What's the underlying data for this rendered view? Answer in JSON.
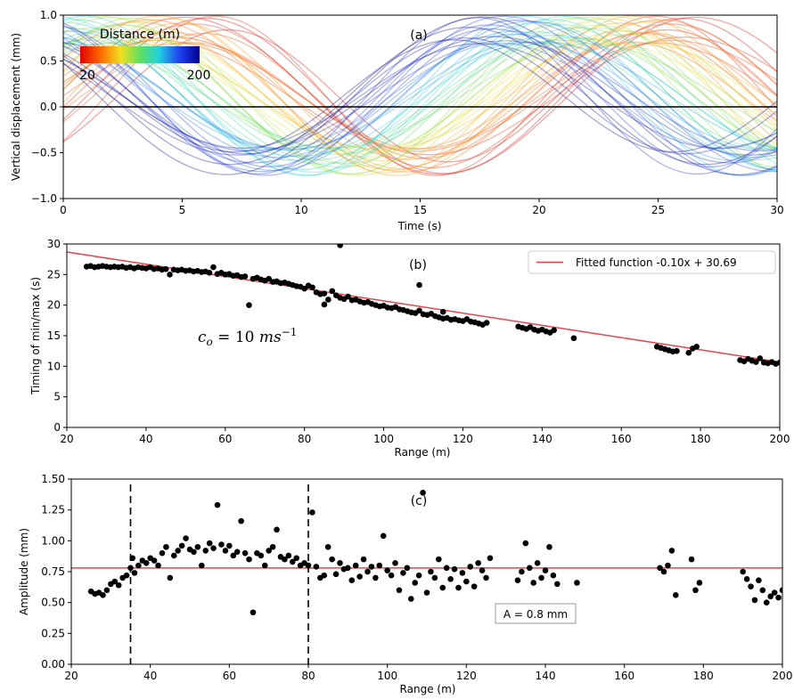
{
  "chart_data": [
    {
      "panel_label": "(a)",
      "type": "line",
      "xlabel": "Time (s)",
      "ylabel": "Vertical displacement (mm)",
      "xlim": [
        0,
        30
      ],
      "ylim": [
        -1.0,
        1.0
      ],
      "xticks": [
        "0",
        "5",
        "10",
        "15",
        "20",
        "25",
        "30"
      ],
      "yticks": [
        "−1.0",
        "−0.5",
        "0.0",
        "0.5",
        "1.0"
      ],
      "zero_line": 0.0,
      "colorbar": {
        "title": "Distance (m)",
        "min_label": "20",
        "max_label": "200",
        "colormap": "jet_r",
        "min": 20,
        "max": 200
      },
      "curve_model": {
        "description_from_picture": "many sine-like curves, one per distance; peak timing decreases with distance",
        "distances": [
          20,
          30,
          40,
          50,
          60,
          70,
          80,
          90,
          100,
          110,
          120,
          130,
          140,
          150,
          160,
          170,
          180,
          190,
          200
        ]
      }
    },
    {
      "panel_label": "(b)",
      "type": "scatter",
      "xlabel": "Range (m)",
      "ylabel": "Timing of min/max (s)",
      "xlim": [
        20,
        200
      ],
      "ylim": [
        0,
        30
      ],
      "xticks": [
        "20",
        "40",
        "60",
        "80",
        "100",
        "120",
        "140",
        "160",
        "180",
        "200"
      ],
      "yticks": [
        "0",
        "5",
        "10",
        "15",
        "20",
        "25",
        "30"
      ],
      "legend": "Fitted function -0.10x + 30.69",
      "legend_position": "top-right",
      "fit": {
        "slope": -0.1,
        "intercept": 30.69,
        "color": "#e8434b"
      },
      "annotation": "c_o = 10 ms^-1",
      "annotation_parts": {
        "c": "c",
        "sub": "o",
        "eq": " = 10 ",
        "unit": "ms",
        "sup": "−1"
      },
      "points": [
        [
          25,
          26.3
        ],
        [
          26,
          26.4
        ],
        [
          27,
          26.2
        ],
        [
          28,
          26.3
        ],
        [
          29,
          26.4
        ],
        [
          30,
          26.3
        ],
        [
          31,
          26.2
        ],
        [
          32,
          26.3
        ],
        [
          33,
          26.2
        ],
        [
          34,
          26.3
        ],
        [
          35,
          26.1
        ],
        [
          36,
          26.2
        ],
        [
          37,
          26.0
        ],
        [
          38,
          26.2
        ],
        [
          39,
          26.1
        ],
        [
          40,
          26.0
        ],
        [
          41,
          26.2
        ],
        [
          42,
          25.9
        ],
        [
          43,
          26.0
        ],
        [
          44,
          25.8
        ],
        [
          45,
          25.9
        ],
        [
          46,
          25.0
        ],
        [
          47,
          25.8
        ],
        [
          48,
          25.7
        ],
        [
          49,
          25.8
        ],
        [
          50,
          25.6
        ],
        [
          51,
          25.7
        ],
        [
          52,
          25.5
        ],
        [
          53,
          25.6
        ],
        [
          54,
          25.4
        ],
        [
          55,
          25.5
        ],
        [
          56,
          25.3
        ],
        [
          57,
          26.2
        ],
        [
          58,
          25.1
        ],
        [
          59,
          25.3
        ],
        [
          60,
          25.0
        ],
        [
          61,
          25.1
        ],
        [
          62,
          24.8
        ],
        [
          63,
          24.9
        ],
        [
          64,
          24.6
        ],
        [
          65,
          24.7
        ],
        [
          66,
          20.0
        ],
        [
          67,
          24.3
        ],
        [
          68,
          24.5
        ],
        [
          69,
          24.2
        ],
        [
          70,
          24.0
        ],
        [
          71,
          24.3
        ],
        [
          72,
          23.8
        ],
        [
          73,
          23.9
        ],
        [
          74,
          23.6
        ],
        [
          75,
          23.7
        ],
        [
          76,
          23.5
        ],
        [
          77,
          23.3
        ],
        [
          78,
          23.1
        ],
        [
          79,
          23.0
        ],
        [
          80,
          22.7
        ],
        [
          81,
          23.2
        ],
        [
          82,
          22.9
        ],
        [
          83,
          22.1
        ],
        [
          84,
          21.8
        ],
        [
          85,
          21.9
        ],
        [
          86,
          20.9
        ],
        [
          87,
          22.3
        ],
        [
          88,
          21.6
        ],
        [
          89,
          21.2
        ],
        [
          90,
          21.0
        ],
        [
          91,
          21.4
        ],
        [
          92,
          20.8
        ],
        [
          93,
          20.9
        ],
        [
          94,
          20.6
        ],
        [
          95,
          20.4
        ],
        [
          96,
          20.5
        ],
        [
          97,
          20.2
        ],
        [
          98,
          20.0
        ],
        [
          99,
          19.8
        ],
        [
          100,
          19.9
        ],
        [
          101,
          19.6
        ],
        [
          102,
          19.5
        ],
        [
          103,
          19.7
        ],
        [
          104,
          19.3
        ],
        [
          105,
          19.2
        ],
        [
          106,
          19.0
        ],
        [
          107,
          18.8
        ],
        [
          108,
          18.7
        ],
        [
          109,
          19.1
        ],
        [
          110,
          18.5
        ],
        [
          111,
          18.4
        ],
        [
          112,
          18.6
        ],
        [
          113,
          18.2
        ],
        [
          114,
          18.0
        ],
        [
          115,
          17.8
        ],
        [
          116,
          17.9
        ],
        [
          117,
          17.6
        ],
        [
          118,
          17.7
        ],
        [
          119,
          17.5
        ],
        [
          120,
          17.4
        ],
        [
          121,
          17.7
        ],
        [
          122,
          17.3
        ],
        [
          123,
          17.2
        ],
        [
          124,
          17.0
        ],
        [
          125,
          16.8
        ],
        [
          126,
          17.1
        ],
        [
          109,
          23.3
        ],
        [
          89,
          29.8
        ],
        [
          85,
          20.1
        ],
        [
          115,
          18.9
        ],
        [
          134,
          16.5
        ],
        [
          135,
          16.3
        ],
        [
          136,
          16.1
        ],
        [
          137,
          16.4
        ],
        [
          138,
          16.0
        ],
        [
          139,
          15.8
        ],
        [
          140,
          16.0
        ],
        [
          141,
          15.7
        ],
        [
          142,
          15.5
        ],
        [
          143,
          15.9
        ],
        [
          148,
          14.6
        ],
        [
          169,
          13.2
        ],
        [
          170,
          13.0
        ],
        [
          171,
          12.8
        ],
        [
          172,
          12.6
        ],
        [
          173,
          12.4
        ],
        [
          174,
          12.5
        ],
        [
          177,
          12.2
        ],
        [
          178,
          12.9
        ],
        [
          179,
          13.2
        ],
        [
          190,
          11.0
        ],
        [
          191,
          10.8
        ],
        [
          192,
          11.2
        ],
        [
          193,
          10.9
        ],
        [
          194,
          10.7
        ],
        [
          195,
          11.3
        ],
        [
          196,
          10.6
        ],
        [
          197,
          10.5
        ],
        [
          198,
          10.7
        ],
        [
          199,
          10.4
        ],
        [
          200,
          10.6
        ]
      ]
    },
    {
      "panel_label": "(c)",
      "type": "scatter",
      "xlabel": "Range (m)",
      "ylabel": "Amplitude (mm)",
      "xlim": [
        20,
        200
      ],
      "ylim": [
        0,
        1.5
      ],
      "xticks": [
        "20",
        "40",
        "60",
        "80",
        "100",
        "120",
        "140",
        "160",
        "180",
        "200"
      ],
      "yticks": [
        "0.00",
        "0.25",
        "0.50",
        "0.75",
        "1.00",
        "1.25",
        "1.50"
      ],
      "hline": {
        "value": 0.78,
        "label": "A = 0.8 mm",
        "color": "#e8434b"
      },
      "vlines": [
        35,
        80
      ],
      "points": [
        [
          25,
          0.59
        ],
        [
          26,
          0.57
        ],
        [
          27,
          0.58
        ],
        [
          28,
          0.56
        ],
        [
          29,
          0.6
        ],
        [
          30,
          0.65
        ],
        [
          31,
          0.67
        ],
        [
          32,
          0.64
        ],
        [
          33,
          0.7
        ],
        [
          34,
          0.72
        ],
        [
          35,
          0.78
        ],
        [
          35.5,
          0.86
        ],
        [
          36,
          0.74
        ],
        [
          37,
          0.8
        ],
        [
          38,
          0.84
        ],
        [
          39,
          0.82
        ],
        [
          40,
          0.86
        ],
        [
          41,
          0.84
        ],
        [
          42,
          0.8
        ],
        [
          43,
          0.9
        ],
        [
          44,
          0.95
        ],
        [
          45,
          0.7
        ],
        [
          46,
          0.88
        ],
        [
          47,
          0.92
        ],
        [
          48,
          0.96
        ],
        [
          49,
          1.02
        ],
        [
          50,
          0.93
        ],
        [
          51,
          0.91
        ],
        [
          52,
          0.95
        ],
        [
          53,
          0.8
        ],
        [
          54,
          0.92
        ],
        [
          55,
          0.98
        ],
        [
          56,
          0.94
        ],
        [
          57,
          1.29
        ],
        [
          58,
          0.97
        ],
        [
          59,
          0.92
        ],
        [
          60,
          0.96
        ],
        [
          61,
          0.88
        ],
        [
          62,
          0.91
        ],
        [
          63,
          1.16
        ],
        [
          64,
          0.9
        ],
        [
          65,
          0.85
        ],
        [
          66,
          0.42
        ],
        [
          67,
          0.9
        ],
        [
          68,
          0.88
        ],
        [
          69,
          0.8
        ],
        [
          70,
          0.92
        ],
        [
          71,
          0.95
        ],
        [
          72,
          1.09
        ],
        [
          73,
          0.87
        ],
        [
          74,
          0.85
        ],
        [
          75,
          0.88
        ],
        [
          76,
          0.83
        ],
        [
          77,
          0.86
        ],
        [
          78,
          0.8
        ],
        [
          79,
          0.82
        ],
        [
          80,
          0.8
        ],
        [
          81,
          1.23
        ],
        [
          82,
          0.79
        ],
        [
          83,
          0.7
        ],
        [
          84,
          0.72
        ],
        [
          85,
          0.95
        ],
        [
          86,
          0.85
        ],
        [
          87,
          0.73
        ],
        [
          88,
          0.82
        ],
        [
          89,
          0.77
        ],
        [
          90,
          0.78
        ],
        [
          91,
          0.68
        ],
        [
          92,
          0.8
        ],
        [
          93,
          0.71
        ],
        [
          94,
          0.85
        ],
        [
          95,
          0.75
        ],
        [
          96,
          0.79
        ],
        [
          97,
          0.7
        ],
        [
          98,
          0.8
        ],
        [
          99,
          1.04
        ],
        [
          100,
          0.76
        ],
        [
          101,
          0.72
        ],
        [
          102,
          0.82
        ],
        [
          103,
          0.6
        ],
        [
          104,
          0.74
        ],
        [
          105,
          0.78
        ],
        [
          106,
          0.53
        ],
        [
          107,
          0.66
        ],
        [
          108,
          0.72
        ],
        [
          109,
          1.39
        ],
        [
          110,
          0.58
        ],
        [
          111,
          0.75
        ],
        [
          112,
          0.7
        ],
        [
          113,
          0.85
        ],
        [
          114,
          0.62
        ],
        [
          115,
          0.78
        ],
        [
          116,
          0.69
        ],
        [
          117,
          0.77
        ],
        [
          118,
          0.62
        ],
        [
          119,
          0.74
        ],
        [
          120,
          0.67
        ],
        [
          121,
          0.79
        ],
        [
          122,
          0.63
        ],
        [
          123,
          0.82
        ],
        [
          124,
          0.76
        ],
        [
          125,
          0.7
        ],
        [
          126,
          0.86
        ],
        [
          133,
          0.68
        ],
        [
          134,
          0.75
        ],
        [
          135,
          0.98
        ],
        [
          136,
          0.78
        ],
        [
          137,
          0.66
        ],
        [
          138,
          0.82
        ],
        [
          139,
          0.7
        ],
        [
          140,
          0.76
        ],
        [
          141,
          0.95
        ],
        [
          142,
          0.72
        ],
        [
          143,
          0.65
        ],
        [
          148,
          0.66
        ],
        [
          169,
          0.78
        ],
        [
          170,
          0.75
        ],
        [
          171,
          0.8
        ],
        [
          172,
          0.92
        ],
        [
          173,
          0.56
        ],
        [
          177,
          0.85
        ],
        [
          178,
          0.6
        ],
        [
          179,
          0.66
        ],
        [
          190,
          0.75
        ],
        [
          191,
          0.69
        ],
        [
          192,
          0.63
        ],
        [
          193,
          0.52
        ],
        [
          194,
          0.68
        ],
        [
          195,
          0.6
        ],
        [
          196,
          0.5
        ],
        [
          197,
          0.55
        ],
        [
          198,
          0.58
        ],
        [
          199,
          0.54
        ],
        [
          200,
          0.6
        ]
      ]
    }
  ]
}
